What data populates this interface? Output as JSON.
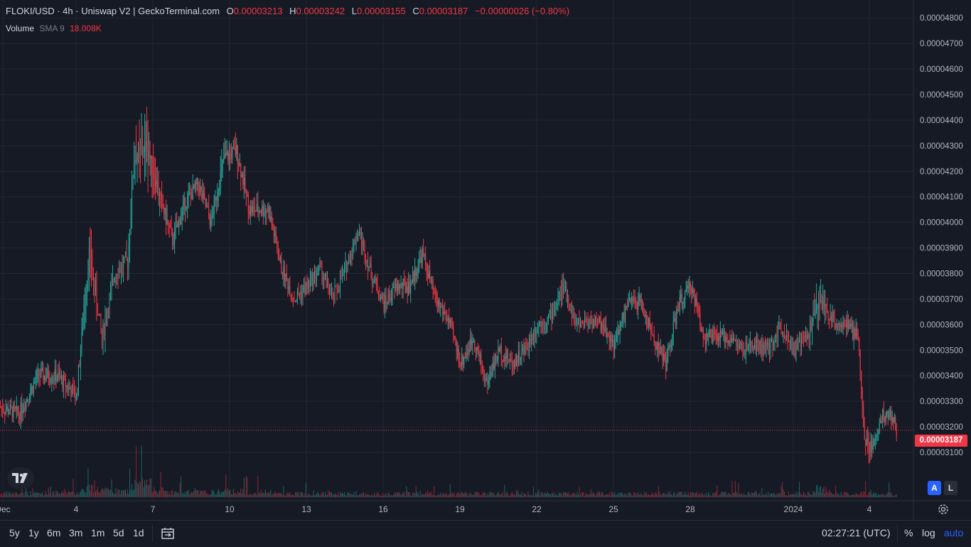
{
  "header": {
    "title": "FLOKI/USD · 4h · Uniswap V2  |  GeckoTerminal.com",
    "open_label": "O",
    "open": "0.00003213",
    "high_label": "H",
    "high": "0.00003242",
    "low_label": "L",
    "low": "0.00003155",
    "close_label": "C",
    "close": "0.00003187",
    "change": "−0.00000026 (−0.80%)"
  },
  "volume_legend": {
    "label": "Volume",
    "sma": "SMA 9",
    "value": "18.008K"
  },
  "last_price_tag": "0.00003187",
  "buttons": {
    "auto_scale": "A",
    "lock": "L"
  },
  "timeframes": [
    "5y",
    "1y",
    "6m",
    "3m",
    "1m",
    "5d",
    "1d"
  ],
  "bottom_bar": {
    "clock": "02:27:21 (UTC)",
    "percent": "%",
    "log": "log",
    "auto": "auto"
  },
  "colors": {
    "up": "#26a69a",
    "down": "#f23645",
    "background": "#161a25",
    "grid": "#222632",
    "text": "#d1d4dc",
    "accent": "#2962ff"
  },
  "icons": {
    "logo": "tradingview-logo-icon",
    "date_range": "calendar-range-icon",
    "settings": "gear-icon"
  },
  "chart_data": {
    "type": "candlestick",
    "title": "FLOKI/USD · 4h · Uniswap V2",
    "y_ticks": [
      "0.00004800",
      "0.00004700",
      "0.00004600",
      "0.00004500",
      "0.00004400",
      "0.00004300",
      "0.00004200",
      "0.00004100",
      "0.00004000",
      "0.00003900",
      "0.00003800",
      "0.00003700",
      "0.00003600",
      "0.00003500",
      "0.00003400",
      "0.00003300",
      "0.00003200",
      "0.00003100"
    ],
    "x_ticks": [
      "Dec",
      "4",
      "7",
      "10",
      "13",
      "16",
      "19",
      "22",
      "25",
      "28",
      "2024",
      "4"
    ],
    "ylim": [
      3.05e-05,
      4.82e-05
    ],
    "grid": true,
    "waypoints": [
      [
        0,
        3.28,
        3.2
      ],
      [
        3,
        3.25,
        3.2
      ],
      [
        6,
        3.4,
        3.3
      ],
      [
        9,
        3.4,
        3.5
      ],
      [
        12,
        3.32,
        3.5
      ],
      [
        13,
        3.6,
        6
      ],
      [
        14,
        3.88,
        8
      ],
      [
        16,
        3.55,
        6
      ],
      [
        18,
        3.8,
        4
      ],
      [
        20,
        3.85,
        5
      ],
      [
        21,
        4.25,
        10
      ],
      [
        23,
        4.3,
        12
      ],
      [
        25,
        4.1,
        6
      ],
      [
        27,
        3.93,
        4
      ],
      [
        29,
        4.08,
        4
      ],
      [
        31,
        4.15,
        4
      ],
      [
        33,
        4.0,
        4
      ],
      [
        35,
        4.25,
        5
      ],
      [
        37,
        4.28,
        5
      ],
      [
        39,
        4.05,
        4
      ],
      [
        42,
        4.05,
        4
      ],
      [
        44,
        3.82,
        3
      ],
      [
        46,
        3.7,
        3
      ],
      [
        48,
        3.75,
        3
      ],
      [
        50,
        3.82,
        3
      ],
      [
        52,
        3.7,
        3
      ],
      [
        54,
        3.82,
        3
      ],
      [
        56,
        3.97,
        3
      ],
      [
        58,
        3.8,
        3
      ],
      [
        60,
        3.68,
        3
      ],
      [
        62,
        3.75,
        3
      ],
      [
        64,
        3.75,
        3
      ],
      [
        66,
        3.88,
        3
      ],
      [
        68,
        3.7,
        3
      ],
      [
        70,
        3.62,
        3
      ],
      [
        72,
        3.45,
        3
      ],
      [
        74,
        3.55,
        3
      ],
      [
        76,
        3.37,
        3
      ],
      [
        78,
        3.5,
        3
      ],
      [
        80,
        3.45,
        3
      ],
      [
        82,
        3.5,
        3
      ],
      [
        84,
        3.6,
        3
      ],
      [
        86,
        3.63,
        3
      ],
      [
        88,
        3.75,
        3
      ],
      [
        90,
        3.6,
        3
      ],
      [
        92,
        3.62,
        3
      ],
      [
        94,
        3.6,
        3
      ],
      [
        96,
        3.52,
        3
      ],
      [
        98,
        3.68,
        3
      ],
      [
        100,
        3.69,
        3
      ],
      [
        102,
        3.55,
        3
      ],
      [
        104,
        3.45,
        3
      ],
      [
        106,
        3.68,
        3
      ],
      [
        108,
        3.75,
        3
      ],
      [
        110,
        3.55,
        3
      ],
      [
        112,
        3.55,
        3
      ],
      [
        114,
        3.55,
        3
      ],
      [
        116,
        3.5,
        3
      ],
      [
        118,
        3.52,
        3
      ],
      [
        120,
        3.5,
        3
      ],
      [
        122,
        3.6,
        3
      ],
      [
        124,
        3.5,
        3
      ],
      [
        126,
        3.55,
        3
      ],
      [
        128,
        3.7,
        8
      ],
      [
        130,
        3.62,
        3
      ],
      [
        132,
        3.6,
        3
      ],
      [
        134,
        3.55,
        3
      ],
      [
        135,
        3.15,
        4
      ],
      [
        136,
        3.12,
        4
      ],
      [
        138,
        3.25,
        3
      ],
      [
        139,
        3.25,
        3
      ],
      [
        140,
        3.187,
        2
      ]
    ]
  }
}
